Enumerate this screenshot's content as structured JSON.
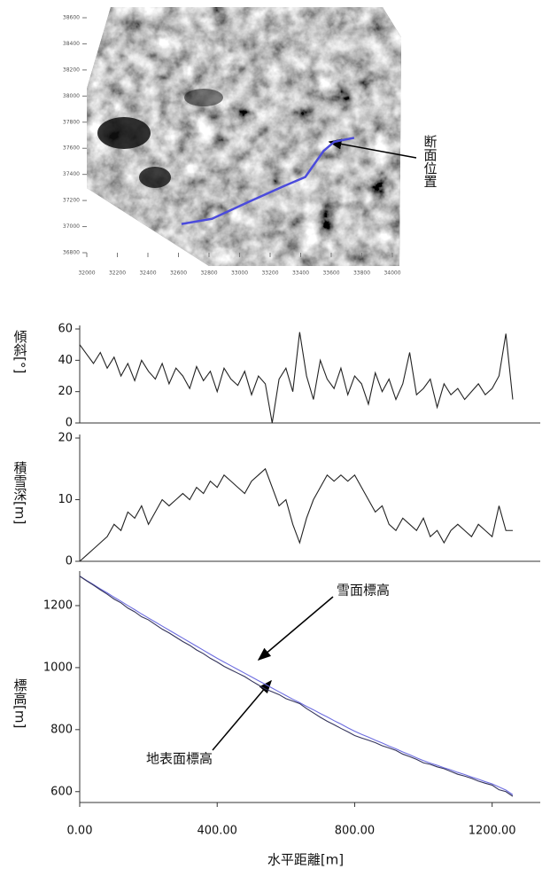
{
  "chart_data": [
    {
      "type": "map",
      "annotation": "断面位置",
      "xlim": [
        32000,
        34000
      ],
      "ylim": [
        36800,
        38600
      ],
      "xticks": [
        32000,
        32200,
        32400,
        32600,
        32800,
        33000,
        33200,
        33400,
        33600,
        33800,
        34000
      ],
      "yticks": [
        36800,
        37000,
        37200,
        37400,
        37600,
        37800,
        38000,
        38200,
        38400,
        38600
      ],
      "series": [
        {
          "color": "#4b4bdc",
          "x": [
            32620,
            32820,
            33060,
            33290,
            33430,
            33550,
            33620,
            33750
          ],
          "values": [
            37020,
            37060,
            37190,
            37310,
            37380,
            37580,
            37650,
            37680
          ]
        }
      ]
    },
    {
      "type": "line",
      "ylabel": "傾斜[°]",
      "xlim": [
        0,
        1340
      ],
      "ylim": [
        0,
        60
      ],
      "yticks": [
        0,
        20,
        40,
        60
      ],
      "x": [
        0,
        20,
        40,
        60,
        80,
        100,
        120,
        140,
        160,
        180,
        200,
        220,
        240,
        260,
        280,
        300,
        320,
        340,
        360,
        380,
        400,
        420,
        440,
        460,
        480,
        500,
        520,
        540,
        560,
        580,
        600,
        620,
        640,
        660,
        680,
        700,
        720,
        740,
        760,
        780,
        800,
        820,
        840,
        860,
        880,
        900,
        920,
        940,
        960,
        980,
        1000,
        1020,
        1040,
        1060,
        1080,
        1100,
        1120,
        1140,
        1160,
        1180,
        1200,
        1220,
        1240,
        1260
      ],
      "series": [
        {
          "color": "#222222",
          "values": [
            50,
            44,
            38,
            45,
            35,
            42,
            30,
            38,
            27,
            40,
            33,
            28,
            38,
            25,
            35,
            30,
            22,
            36,
            27,
            33,
            20,
            35,
            28,
            24,
            33,
            18,
            30,
            25,
            0,
            28,
            35,
            20,
            58,
            30,
            15,
            40,
            28,
            22,
            35,
            18,
            30,
            25,
            12,
            32,
            20,
            28,
            15,
            25,
            45,
            18,
            22,
            28,
            10,
            25,
            18,
            22,
            15,
            20,
            25,
            18,
            22,
            30,
            57,
            15
          ]
        }
      ]
    },
    {
      "type": "line",
      "ylabel": "積雪深[m]",
      "xlim": [
        0,
        1340
      ],
      "ylim": [
        0,
        20
      ],
      "yticks": [
        0,
        10,
        20
      ],
      "x": [
        0,
        20,
        40,
        60,
        80,
        100,
        120,
        140,
        160,
        180,
        200,
        220,
        240,
        260,
        280,
        300,
        320,
        340,
        360,
        380,
        400,
        420,
        440,
        460,
        480,
        500,
        520,
        540,
        560,
        580,
        600,
        620,
        640,
        660,
        680,
        700,
        720,
        740,
        760,
        780,
        800,
        820,
        840,
        860,
        880,
        900,
        920,
        940,
        960,
        980,
        1000,
        1020,
        1040,
        1060,
        1080,
        1100,
        1120,
        1140,
        1160,
        1180,
        1200,
        1220,
        1240,
        1260
      ],
      "series": [
        {
          "color": "#222222",
          "values": [
            0,
            1,
            2,
            3,
            4,
            6,
            5,
            8,
            7,
            9,
            6,
            8,
            10,
            9,
            10,
            11,
            10,
            12,
            11,
            13,
            12,
            14,
            13,
            12,
            11,
            13,
            14,
            15,
            12,
            9,
            10,
            6,
            3,
            7,
            10,
            12,
            14,
            13,
            14,
            13,
            14,
            12,
            10,
            8,
            9,
            6,
            5,
            7,
            6,
            5,
            7,
            4,
            5,
            3,
            5,
            6,
            5,
            4,
            6,
            5,
            4,
            9,
            5,
            5
          ]
        }
      ]
    },
    {
      "type": "line",
      "ylabel": "標高[m]",
      "xlabel": "水平距離[m]",
      "xlim": [
        0,
        1340
      ],
      "ylim": [
        565,
        1300
      ],
      "yticks": [
        600,
        800,
        1000,
        1200
      ],
      "xticks": [
        {
          "value": 0,
          "label": "0.00"
        },
        {
          "value": 400,
          "label": "400.00"
        },
        {
          "value": 800,
          "label": "800.00"
        },
        {
          "value": 1200,
          "label": "1200.00"
        }
      ],
      "x": [
        0,
        20,
        40,
        60,
        80,
        100,
        120,
        140,
        160,
        180,
        200,
        220,
        240,
        260,
        280,
        300,
        320,
        340,
        360,
        380,
        400,
        420,
        440,
        460,
        480,
        500,
        520,
        540,
        560,
        580,
        600,
        620,
        640,
        660,
        680,
        700,
        720,
        740,
        760,
        780,
        800,
        820,
        840,
        860,
        880,
        900,
        920,
        940,
        960,
        980,
        1000,
        1020,
        1040,
        1060,
        1080,
        1100,
        1120,
        1140,
        1160,
        1180,
        1200,
        1220,
        1240,
        1260
      ],
      "series": [
        {
          "name": "雪面標高",
          "color": "#6c6ce0",
          "values": [
            1295,
            1281,
            1268,
            1254,
            1241,
            1227,
            1214,
            1200,
            1187,
            1173,
            1160,
            1147,
            1134,
            1121,
            1108,
            1095,
            1082,
            1069,
            1056,
            1043,
            1030,
            1018,
            1006,
            994,
            982,
            970,
            958,
            946,
            934,
            922,
            910,
            898,
            887,
            875,
            864,
            852,
            841,
            829,
            818,
            806,
            795,
            785,
            776,
            766,
            757,
            747,
            738,
            728,
            719,
            709,
            700,
            692,
            685,
            677,
            670,
            662,
            655,
            647,
            640,
            632,
            625,
            615,
            605,
            590
          ]
        },
        {
          "name": "地表面標高",
          "color": "#33335a",
          "values": [
            1295,
            1280,
            1266,
            1251,
            1237,
            1221,
            1209,
            1192,
            1180,
            1164,
            1154,
            1139,
            1124,
            1112,
            1098,
            1084,
            1072,
            1057,
            1045,
            1030,
            1018,
            1004,
            993,
            982,
            971,
            957,
            944,
            931,
            922,
            913,
            900,
            892,
            884,
            868,
            854,
            840,
            827,
            816,
            804,
            793,
            781,
            773,
            766,
            758,
            748,
            741,
            733,
            721,
            713,
            704,
            693,
            688,
            680,
            674,
            665,
            656,
            650,
            643,
            634,
            627,
            621,
            606,
            600,
            585
          ]
        }
      ]
    }
  ]
}
